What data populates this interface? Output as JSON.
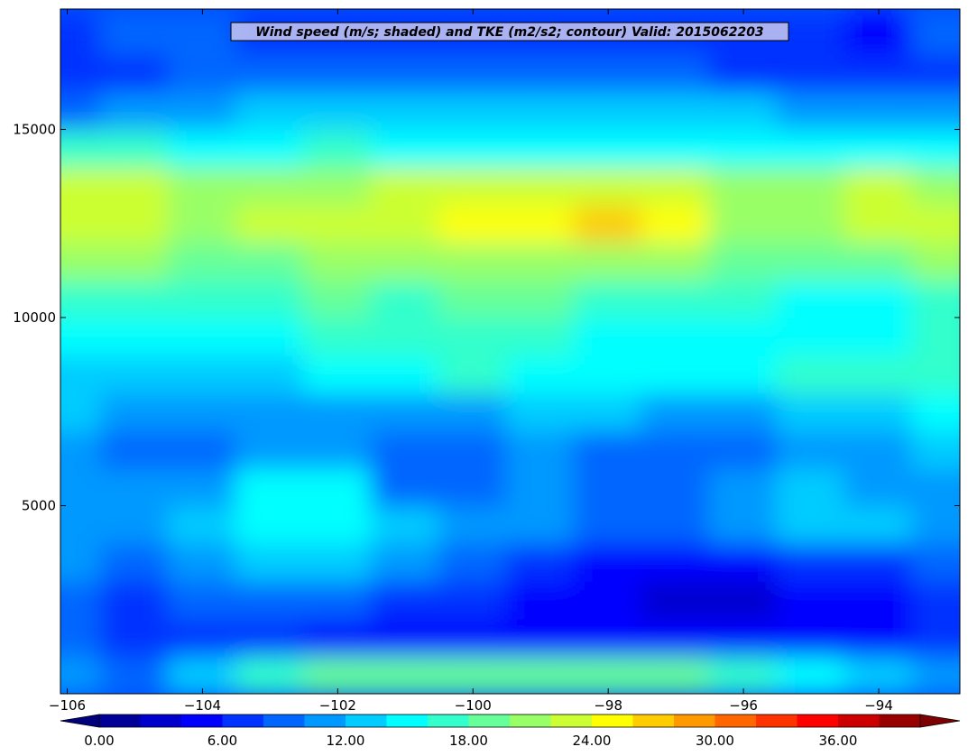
{
  "chart_data": {
    "type": "heatmap",
    "title": "Wind speed (m/s; shaded) and TKE (m2/s2; contour) Valid: 2015062203",
    "xlabel": "",
    "ylabel": "",
    "xlim": [
      -106.1,
      -92.8
    ],
    "ylim": [
      0,
      18200
    ],
    "x_ticks": [
      -106,
      -104,
      -102,
      -100,
      -98,
      -96,
      -94
    ],
    "x_tick_labels": [
      "−106",
      "−104",
      "−102",
      "−100",
      "−98",
      "−96",
      "−94"
    ],
    "y_ticks": [
      5000,
      10000,
      15000
    ],
    "y_tick_labels": [
      "5000",
      "10000",
      "15000"
    ],
    "grid": false,
    "colorbar": {
      "min": 0,
      "max": 40,
      "step": 2,
      "extend": "both",
      "tick_values": [
        0,
        6,
        12,
        18,
        24,
        30,
        36
      ],
      "tick_labels": [
        "0.00",
        "6.00",
        "12.00",
        "18.00",
        "24.00",
        "30.00",
        "36.00"
      ],
      "under_color": "#00007f",
      "over_color": "#7f0000"
    },
    "x": [
      -106.0,
      -105.0,
      -104.0,
      -103.0,
      -102.0,
      -101.0,
      -100.0,
      -99.0,
      -98.0,
      -97.0,
      -96.0,
      -95.0,
      -94.0,
      -93.0
    ],
    "y": [
      500,
      1500,
      2500,
      3500,
      4500,
      5500,
      6500,
      7500,
      8500,
      9500,
      10500,
      11500,
      12500,
      13500,
      14500,
      15500,
      16500,
      17500
    ],
    "values": [
      [
        10,
        8,
        12,
        16,
        18,
        18,
        18,
        18,
        18,
        18,
        16,
        14,
        12,
        10
      ],
      [
        8,
        6,
        6,
        6,
        4,
        4,
        5,
        4,
        4,
        4,
        4,
        4,
        5,
        6
      ],
      [
        8,
        6,
        8,
        8,
        8,
        6,
        6,
        4,
        4,
        2,
        2,
        4,
        4,
        6
      ],
      [
        10,
        8,
        10,
        12,
        12,
        10,
        8,
        6,
        4,
        4,
        4,
        6,
        6,
        8
      ],
      [
        10,
        10,
        12,
        14,
        14,
        12,
        10,
        10,
        8,
        8,
        10,
        12,
        12,
        10
      ],
      [
        10,
        10,
        10,
        14,
        14,
        8,
        8,
        10,
        8,
        8,
        10,
        12,
        10,
        10
      ],
      [
        10,
        8,
        8,
        10,
        10,
        8,
        8,
        10,
        8,
        8,
        8,
        10,
        10,
        12
      ],
      [
        12,
        10,
        10,
        10,
        10,
        10,
        10,
        12,
        12,
        10,
        10,
        12,
        12,
        14
      ],
      [
        12,
        12,
        12,
        12,
        14,
        14,
        16,
        14,
        14,
        14,
        14,
        16,
        16,
        16
      ],
      [
        14,
        14,
        14,
        14,
        16,
        16,
        16,
        16,
        14,
        14,
        14,
        14,
        14,
        16
      ],
      [
        16,
        16,
        16,
        16,
        18,
        16,
        18,
        18,
        16,
        16,
        16,
        14,
        14,
        16
      ],
      [
        20,
        20,
        18,
        18,
        20,
        20,
        20,
        20,
        20,
        20,
        18,
        18,
        18,
        20
      ],
      [
        22,
        22,
        20,
        22,
        22,
        22,
        24,
        24,
        26,
        24,
        20,
        20,
        22,
        22
      ],
      [
        22,
        22,
        20,
        20,
        20,
        22,
        22,
        22,
        22,
        22,
        20,
        20,
        22,
        20
      ],
      [
        16,
        16,
        14,
        14,
        16,
        14,
        14,
        14,
        14,
        14,
        14,
        14,
        14,
        14
      ],
      [
        8,
        10,
        10,
        12,
        12,
        12,
        12,
        12,
        12,
        12,
        12,
        10,
        10,
        10
      ],
      [
        6,
        6,
        8,
        8,
        8,
        8,
        8,
        8,
        8,
        8,
        6,
        6,
        6,
        6
      ],
      [
        6,
        8,
        8,
        6,
        6,
        6,
        6,
        6,
        6,
        6,
        6,
        6,
        4,
        8
      ]
    ]
  }
}
